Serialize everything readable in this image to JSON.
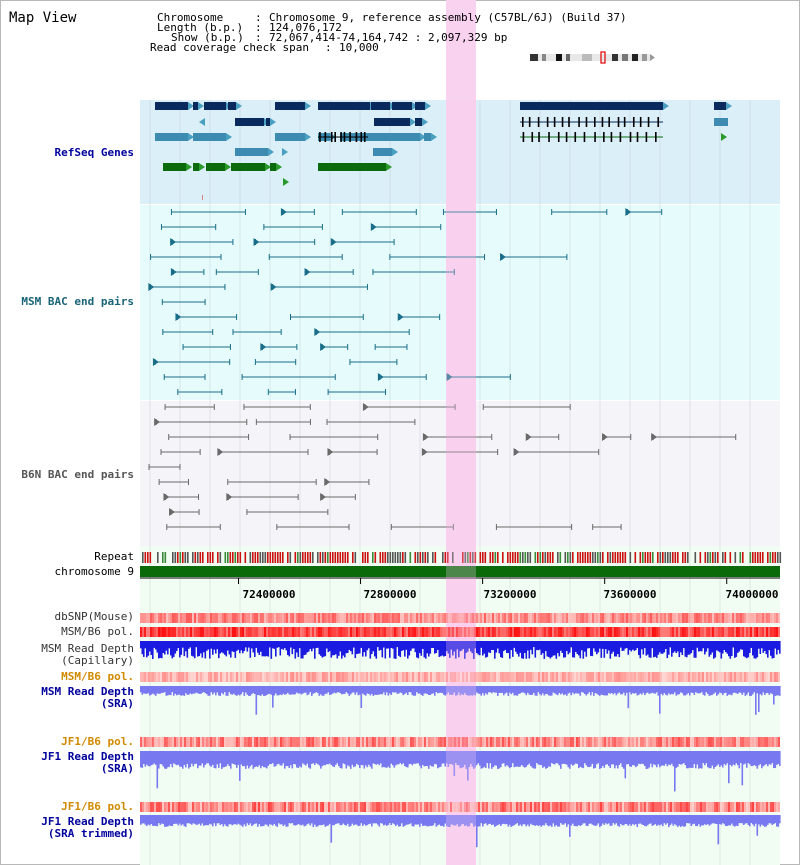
{
  "view": {
    "title": "Map View",
    "info": {
      "chromosome_key": "Chromosome",
      "chromosome_val": "Chromosome 9, reference assembly (C57BL/6J) (Build 37)",
      "length_key": "Length (b.p.)",
      "length_val": "124,076,172",
      "show_key": "Show (b.p.)",
      "show_val": "72,067,414-74,164,742 : 2,097,329 bp",
      "span_key": "Read coverage check span",
      "span_val": "10,000"
    }
  },
  "tracks": {
    "refseq": "RefSeq Genes",
    "msm_bac": "MSM BAC end pairs",
    "b6n_bac": "B6N BAC end pairs",
    "repeat": "Repeat",
    "chromosome": "chromosome 9",
    "dbsnp": "dbSNP(Mouse)",
    "msm_b6_pol": "MSM/B6 pol.",
    "msm_depth_cap_1": "MSM Read Depth",
    "msm_depth_cap_2": "(Capillary)",
    "msm_b6_pol_sra": "MSM/B6 pol.",
    "msm_depth_sra_1": "MSM Read Depth",
    "msm_depth_sra_2": "(SRA)",
    "jf1_b6_pol": "JF1/B6 pol.",
    "jf1_depth_sra_1": "JF1 Read Depth",
    "jf1_depth_sra_2": "(SRA)",
    "jf1_b6_pol_trim": "JF1/B6 pol.",
    "jf1_depth_trim_1": "JF1 Read Depth",
    "jf1_depth_trim_2": "(SRA trimmed)"
  },
  "axis": {
    "ticks": [
      "72400000",
      "72800000",
      "73200000",
      "73600000",
      "74000000"
    ],
    "tick_values": [
      72400000,
      72800000,
      73200000,
      73600000,
      74000000
    ],
    "range": [
      72067414,
      74164742
    ]
  },
  "highlight_range": [
    73080000,
    73180000
  ],
  "colors": {
    "label_blue": "#00009c",
    "label_teal": "#1a6478",
    "label_gray": "#444444",
    "label_orange": "#d08a00",
    "refseq_bg": "#dbeff9",
    "msm_bg": "#e6fbfb",
    "b6n_bg": "#f4f4f9",
    "lower_bg": "#f1fdf3",
    "highlight": "#f8d8f0",
    "gene_dark": "#0a2a5e",
    "gene_mid": "#3d8bb0",
    "gene_green": "#0b6a0b",
    "msm_line": "#1a6e8a",
    "b6n_line": "#6a6a6a",
    "chromosome_bar": "#0a6a0a",
    "depth_dark": "#1a1ae0",
    "depth_light": "#7878f0"
  }
}
